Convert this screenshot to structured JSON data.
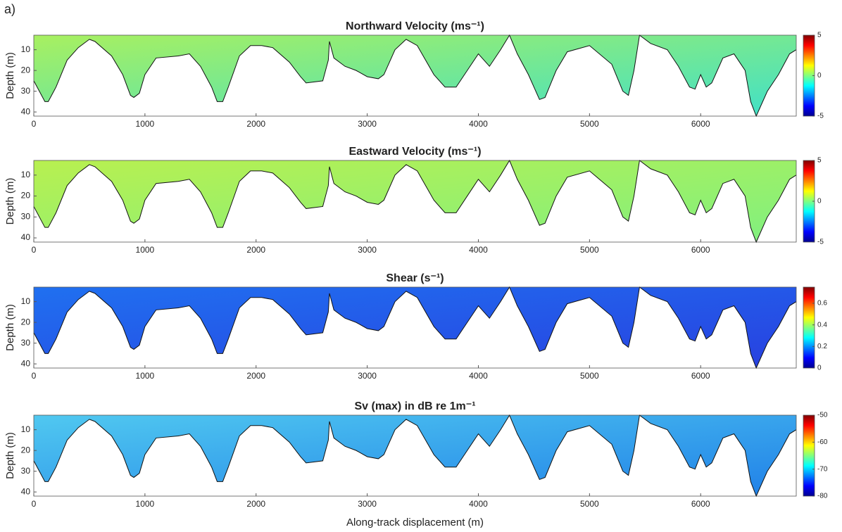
{
  "panel_label": "a)",
  "colormap": [
    "#00008f",
    "#0000ff",
    "#0080ff",
    "#00ffff",
    "#80ff80",
    "#ffff00",
    "#ff8000",
    "#ff0000",
    "#800000"
  ],
  "bottom_profile": {
    "x": [
      0,
      50,
      100,
      130,
      200,
      300,
      400,
      500,
      550,
      700,
      800,
      870,
      900,
      950,
      1000,
      1100,
      1300,
      1400,
      1500,
      1600,
      1650,
      1700,
      1750,
      1850,
      1950,
      2050,
      2150,
      2300,
      2400,
      2450,
      2600,
      2650,
      2660,
      2700,
      2800,
      2900,
      3000,
      3100,
      3150,
      3250,
      3350,
      3450,
      3600,
      3700,
      3800,
      3900,
      4000,
      4100,
      4200,
      4280,
      4350,
      4450,
      4550,
      4600,
      4700,
      4800,
      5000,
      5200,
      5300,
      5350,
      5400,
      5450,
      5550,
      5700,
      5800,
      5900,
      5950,
      6000,
      6050,
      6100,
      6200,
      6300,
      6400,
      6450,
      6500,
      6600,
      6700,
      6800,
      6860
    ],
    "values": [
      25,
      30,
      35,
      35,
      28,
      15,
      9,
      5,
      6,
      13,
      22,
      32,
      33,
      31,
      22,
      14,
      13,
      12,
      18,
      28,
      35,
      35,
      28,
      13,
      8,
      8,
      9,
      16,
      23,
      26,
      25,
      15,
      6,
      14,
      18,
      20,
      23,
      24,
      22,
      10,
      5,
      8,
      22,
      28,
      28,
      20,
      12,
      18,
      10,
      3,
      12,
      22,
      34,
      33,
      20,
      11,
      8,
      17,
      30,
      32,
      20,
      3,
      7,
      10,
      18,
      28,
      29,
      22,
      28,
      26,
      14,
      12,
      20,
      35,
      42,
      30,
      22,
      12,
      10
    ]
  },
  "chart_data": [
    {
      "type": "section",
      "title": "Northward Velocity (ms⁻¹)",
      "ylabel": "Depth (m)",
      "xlim": [
        0,
        6860
      ],
      "xticks": [
        0,
        1000,
        2000,
        3000,
        4000,
        5000,
        6000
      ],
      "ylim": [
        3,
        42
      ],
      "yticks": [
        10,
        20,
        30,
        40
      ],
      "clim": [
        -5,
        5
      ],
      "cticks": [
        -5,
        0,
        5
      ],
      "fill_colors": [
        "#a8f060",
        "#40e0c8"
      ]
    },
    {
      "type": "section",
      "title": "Eastward Velocity (ms⁻¹)",
      "ylabel": "Depth (m)",
      "xlim": [
        0,
        6860
      ],
      "xticks": [
        0,
        1000,
        2000,
        3000,
        4000,
        5000,
        6000
      ],
      "ylim": [
        3,
        42
      ],
      "yticks": [
        10,
        20,
        30,
        40
      ],
      "clim": [
        -5,
        5
      ],
      "cticks": [
        -5,
        0,
        5
      ],
      "fill_colors": [
        "#b8f050",
        "#80f080"
      ]
    },
    {
      "type": "section",
      "title": "Shear (s⁻¹)",
      "ylabel": "Depth (m)",
      "xlim": [
        0,
        6860
      ],
      "xticks": [
        0,
        1000,
        2000,
        3000,
        4000,
        5000,
        6000
      ],
      "ylim": [
        3,
        42
      ],
      "yticks": [
        10,
        20,
        30,
        40
      ],
      "clim": [
        0,
        0.75
      ],
      "cticks": [
        0,
        0.2,
        0.4,
        0.6
      ],
      "fill_colors": [
        "#2070f0",
        "#2840e0"
      ]
    },
    {
      "type": "section",
      "title": "Sv (max) in dB re 1m⁻¹",
      "ylabel": "Depth (m)",
      "xlabel": "Along-track displacement (m)",
      "xlim": [
        0,
        6860
      ],
      "xticks": [
        0,
        1000,
        2000,
        3000,
        4000,
        5000,
        6000
      ],
      "ylim": [
        3,
        42
      ],
      "yticks": [
        10,
        20,
        30,
        40
      ],
      "clim": [
        -80,
        -50
      ],
      "cticks": [
        -80,
        -70,
        -60,
        -50
      ],
      "fill_colors": [
        "#50c8f0",
        "#2080e8"
      ]
    }
  ]
}
